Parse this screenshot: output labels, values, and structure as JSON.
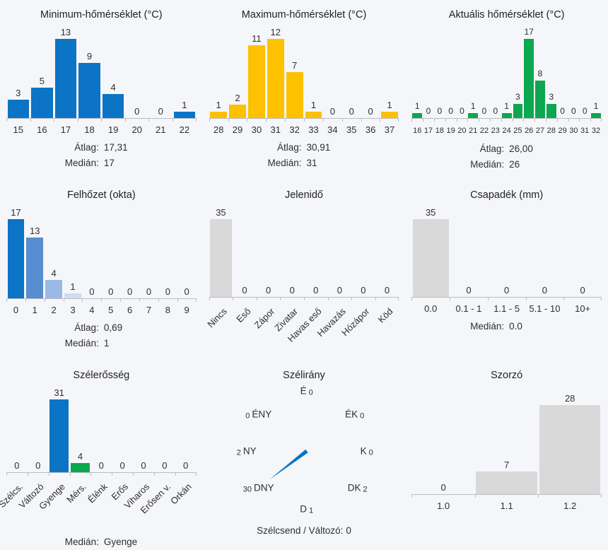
{
  "page": {
    "background_color": "#f5f6fa",
    "text_color": "#2e2e2e",
    "axis_color": "#b9bdc2"
  },
  "colors": {
    "blue": "#0b74c4",
    "yellow": "#fdc100",
    "green": "#0ca74f",
    "gray": "#d9d9d9",
    "cloud_shades": [
      "#0b74c4",
      "#568ed1",
      "#9bb9e5",
      "#cfdcf2"
    ]
  },
  "chart_data": [
    {
      "id": "min-temp",
      "type": "bar",
      "title": "Minimum-hőmérséklet (°C)",
      "categories": [
        "15",
        "16",
        "17",
        "18",
        "19",
        "20",
        "21",
        "22"
      ],
      "values": [
        3,
        5,
        13,
        9,
        4,
        0,
        0,
        1
      ],
      "bar_color": "#0b74c4",
      "ylim": [
        0,
        13
      ],
      "grid": false,
      "stats": [
        {
          "label": "Átlag:",
          "value": "17,31"
        },
        {
          "label": "Medián:",
          "value": "17"
        }
      ]
    },
    {
      "id": "max-temp",
      "type": "bar",
      "title": "Maximum-hőmérséklet (°C)",
      "categories": [
        "28",
        "29",
        "30",
        "31",
        "32",
        "33",
        "34",
        "35",
        "36",
        "37"
      ],
      "values": [
        1,
        2,
        11,
        12,
        7,
        1,
        0,
        0,
        0,
        1
      ],
      "bar_color": "#fdc100",
      "ylim": [
        0,
        12
      ],
      "grid": false,
      "stats": [
        {
          "label": "Átlag:",
          "value": "30,91"
        },
        {
          "label": "Medián:",
          "value": "31"
        }
      ]
    },
    {
      "id": "current-temp",
      "type": "bar",
      "title": "Aktuális hőmérséklet (°C)",
      "categories": [
        "16",
        "17",
        "18",
        "19",
        "20",
        "21",
        "22",
        "23",
        "24",
        "25",
        "26",
        "27",
        "28",
        "29",
        "30",
        "31",
        "32"
      ],
      "values": [
        1,
        0,
        0,
        0,
        0,
        1,
        0,
        0,
        1,
        3,
        17,
        8,
        3,
        0,
        0,
        0,
        1
      ],
      "bar_color": "#0ca74f",
      "ylim": [
        0,
        17
      ],
      "grid": false,
      "stats": [
        {
          "label": "Átlag:",
          "value": "26,00"
        },
        {
          "label": "Medián:",
          "value": "26"
        }
      ]
    },
    {
      "id": "cloud-cover",
      "type": "bar",
      "title": "Felhőzet (okta)",
      "categories": [
        "0",
        "1",
        "2",
        "3",
        "4",
        "5",
        "6",
        "7",
        "8",
        "9"
      ],
      "values": [
        17,
        13,
        4,
        1,
        0,
        0,
        0,
        0,
        0,
        0
      ],
      "bar_color": "#0b74c4",
      "bar_colors": [
        "#0b74c4",
        "#568ed1",
        "#9bb9e5",
        "#cfdcf2",
        null,
        null,
        null,
        null,
        null,
        null
      ],
      "ylim": [
        0,
        17
      ],
      "grid": false,
      "stats": [
        {
          "label": "Átlag:",
          "value": "0,69"
        },
        {
          "label": "Medián:",
          "value": "1"
        }
      ]
    },
    {
      "id": "present-weather",
      "type": "bar",
      "title": "Jelenidő",
      "categories": [
        "Nincs",
        "Eső",
        "Zápor",
        "Zivatar",
        "Havas eső",
        "Havazás",
        "Hózápor",
        "Köd"
      ],
      "values": [
        35,
        0,
        0,
        0,
        0,
        0,
        0,
        0
      ],
      "bar_color": "#d9d9d9",
      "ylim": [
        0,
        35
      ],
      "grid": false,
      "stats": []
    },
    {
      "id": "precipitation",
      "type": "bar",
      "title": "Csapadék (mm)",
      "categories": [
        "0.0",
        "0.1 - 1",
        "1.1 - 5",
        "5.1 - 10",
        "10+"
      ],
      "values": [
        35,
        0,
        0,
        0,
        0
      ],
      "bar_color": "#d9d9d9",
      "ylim": [
        0,
        35
      ],
      "grid": false,
      "stats": [
        {
          "label": "Medián:",
          "value": "0.0"
        }
      ]
    },
    {
      "id": "wind-strength",
      "type": "bar",
      "title": "Szélerősség",
      "categories": [
        "Szélcs.",
        "Változó",
        "Gyenge",
        "Mérs.",
        "Élénk",
        "Erős",
        "Viharos",
        "Erősen v.",
        "Orkán"
      ],
      "values": [
        0,
        0,
        31,
        4,
        0,
        0,
        0,
        0,
        0
      ],
      "bar_color": "#d9d9d9",
      "bar_colors": [
        null,
        null,
        "#0b74c4",
        "#0ca74f",
        null,
        null,
        null,
        null,
        null
      ],
      "ylim": [
        0,
        31
      ],
      "grid": false,
      "stats": [
        {
          "label": "Medián:",
          "value": "Gyenge"
        }
      ]
    },
    {
      "id": "wind-direction",
      "type": "compass",
      "title": "Szélirány",
      "directions": [
        {
          "dir": "É",
          "value": "0",
          "place": "N",
          "value_first": false
        },
        {
          "dir": "ÉK",
          "value": "0",
          "place": "NE",
          "value_first": false
        },
        {
          "dir": "K",
          "value": "0",
          "place": "E",
          "value_first": false
        },
        {
          "dir": "DK",
          "value": "2",
          "place": "SE",
          "value_first": false
        },
        {
          "dir": "D",
          "value": "1",
          "place": "S",
          "value_first": false
        },
        {
          "dir": "DNY",
          "value": "30",
          "place": "SW",
          "value_first": true
        },
        {
          "dir": "NY",
          "value": "2",
          "place": "W",
          "value_first": true
        },
        {
          "dir": "ÉNY",
          "value": "0",
          "place": "NW",
          "value_first": true
        }
      ],
      "needle": {
        "toward": "SW",
        "color": "#0b74c4"
      },
      "footer": {
        "label": "Szélcsend / Változó:",
        "value": "0"
      }
    },
    {
      "id": "multiplier",
      "type": "bar",
      "title": "Szorzó",
      "categories": [
        "1.0",
        "1.1",
        "1.2"
      ],
      "values": [
        0,
        7,
        28
      ],
      "bar_color": "#d9d9d9",
      "ylim": [
        0,
        28
      ],
      "grid": false,
      "stats": []
    }
  ]
}
